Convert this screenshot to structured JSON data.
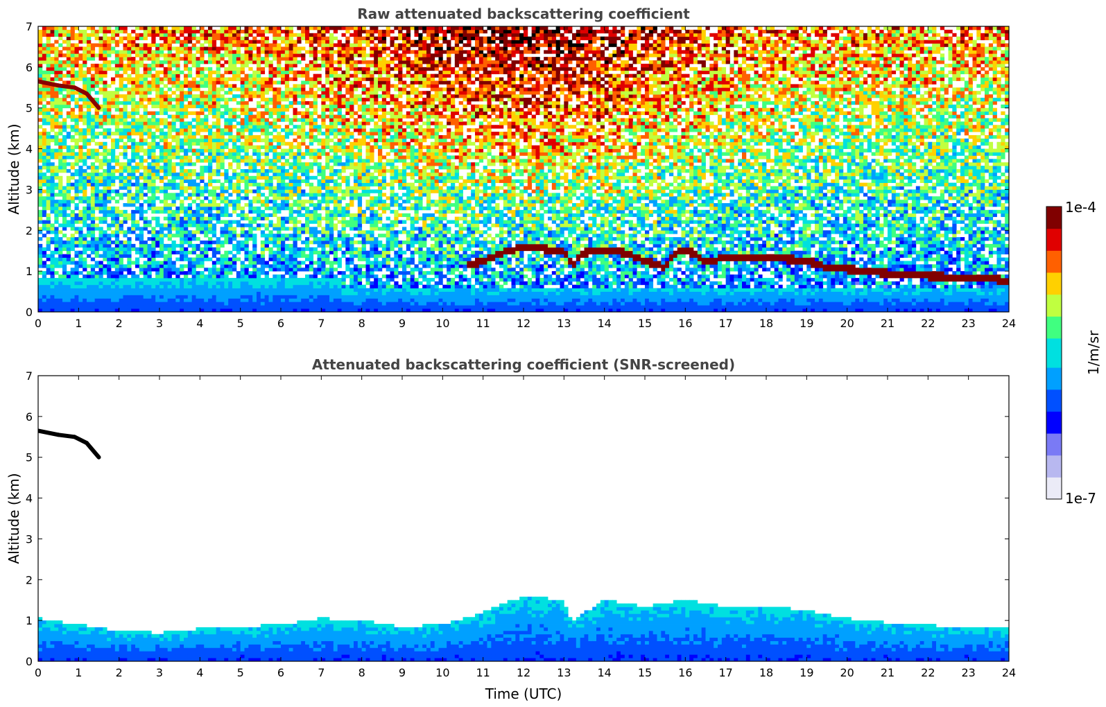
{
  "chart_data": [
    {
      "type": "heatmap",
      "title": "Raw attenuated backscattering coefficient",
      "xlabel": "",
      "ylabel": "Altitude (km)",
      "xlim": [
        0,
        24
      ],
      "ylim": [
        0,
        7
      ],
      "xticks": [
        "0",
        "1",
        "2",
        "3",
        "4",
        "5",
        "6",
        "7",
        "8",
        "9",
        "10",
        "11",
        "12",
        "13",
        "14",
        "15",
        "16",
        "17",
        "18",
        "19",
        "20",
        "21",
        "22",
        "23",
        "24"
      ],
      "yticks": [
        "0",
        "1",
        "2",
        "3",
        "4",
        "5",
        "6",
        "7"
      ],
      "noise_background": true,
      "cloud_top_km": [
        [
          10.6,
          1.15
        ],
        [
          11.0,
          1.25
        ],
        [
          11.5,
          1.45
        ],
        [
          12.0,
          1.6
        ],
        [
          12.5,
          1.55
        ],
        [
          13.0,
          1.5
        ],
        [
          13.2,
          1.15
        ],
        [
          13.5,
          1.45
        ],
        [
          14.0,
          1.5
        ],
        [
          14.5,
          1.45
        ],
        [
          15.0,
          1.25
        ],
        [
          15.5,
          1.1
        ],
        [
          15.8,
          1.5
        ],
        [
          16.1,
          1.5
        ],
        [
          16.5,
          1.2
        ],
        [
          17.0,
          1.35
        ],
        [
          18.0,
          1.35
        ],
        [
          19.0,
          1.25
        ],
        [
          19.5,
          1.1
        ],
        [
          20.0,
          1.05
        ],
        [
          21.0,
          0.95
        ],
        [
          22.0,
          0.88
        ],
        [
          23.0,
          0.85
        ],
        [
          23.9,
          0.78
        ]
      ],
      "high_cloud_km": [
        [
          0.0,
          5.65
        ],
        [
          0.5,
          5.55
        ],
        [
          0.9,
          5.5
        ],
        [
          1.2,
          5.35
        ],
        [
          1.5,
          5.0
        ]
      ]
    },
    {
      "type": "heatmap",
      "title": "Attenuated backscattering coefficient (SNR-screened)",
      "xlabel": "Time (UTC)",
      "ylabel": "Altitude (km)",
      "xlim": [
        0,
        24
      ],
      "ylim": [
        0,
        7
      ],
      "xticks": [
        "0",
        "1",
        "2",
        "3",
        "4",
        "5",
        "6",
        "7",
        "8",
        "9",
        "10",
        "11",
        "12",
        "13",
        "14",
        "15",
        "16",
        "17",
        "18",
        "19",
        "20",
        "21",
        "22",
        "23",
        "24"
      ],
      "yticks": [
        "0",
        "1",
        "2",
        "3",
        "4",
        "5",
        "6",
        "7"
      ],
      "noise_background": false,
      "boundary_layer_top_km": [
        [
          0.0,
          1.05
        ],
        [
          1.0,
          0.9
        ],
        [
          2.0,
          0.75
        ],
        [
          3.0,
          0.7
        ],
        [
          4.0,
          0.8
        ],
        [
          5.0,
          0.85
        ],
        [
          6.0,
          0.9
        ],
        [
          7.0,
          1.05
        ],
        [
          8.0,
          1.0
        ],
        [
          9.0,
          0.85
        ],
        [
          10.0,
          0.9
        ],
        [
          11.0,
          1.2
        ],
        [
          12.0,
          1.6
        ],
        [
          13.0,
          1.5
        ],
        [
          13.2,
          1.0
        ],
        [
          14.0,
          1.5
        ],
        [
          15.0,
          1.35
        ],
        [
          16.0,
          1.5
        ],
        [
          17.0,
          1.35
        ],
        [
          18.0,
          1.35
        ],
        [
          19.0,
          1.25
        ],
        [
          20.0,
          1.05
        ],
        [
          21.0,
          0.95
        ],
        [
          22.0,
          0.88
        ],
        [
          23.0,
          0.85
        ],
        [
          23.9,
          0.8
        ]
      ],
      "high_cloud_km": [
        [
          0.0,
          5.65
        ],
        [
          0.5,
          5.55
        ],
        [
          0.9,
          5.5
        ],
        [
          1.2,
          5.35
        ],
        [
          1.5,
          5.0
        ]
      ]
    }
  ],
  "colorbar": {
    "label": "1/m/sr",
    "max_label": "1e-4",
    "min_label": "1e-7",
    "scale": "log",
    "range": [
      1e-07,
      0.0001
    ],
    "colormap": [
      "#ebebf7",
      "#b8b8f0",
      "#7a7af5",
      "#0000ff",
      "#0050ff",
      "#00a0ff",
      "#00e0e0",
      "#40ff80",
      "#c0ff40",
      "#ffd000",
      "#ff6000",
      "#e00000",
      "#800000"
    ]
  }
}
